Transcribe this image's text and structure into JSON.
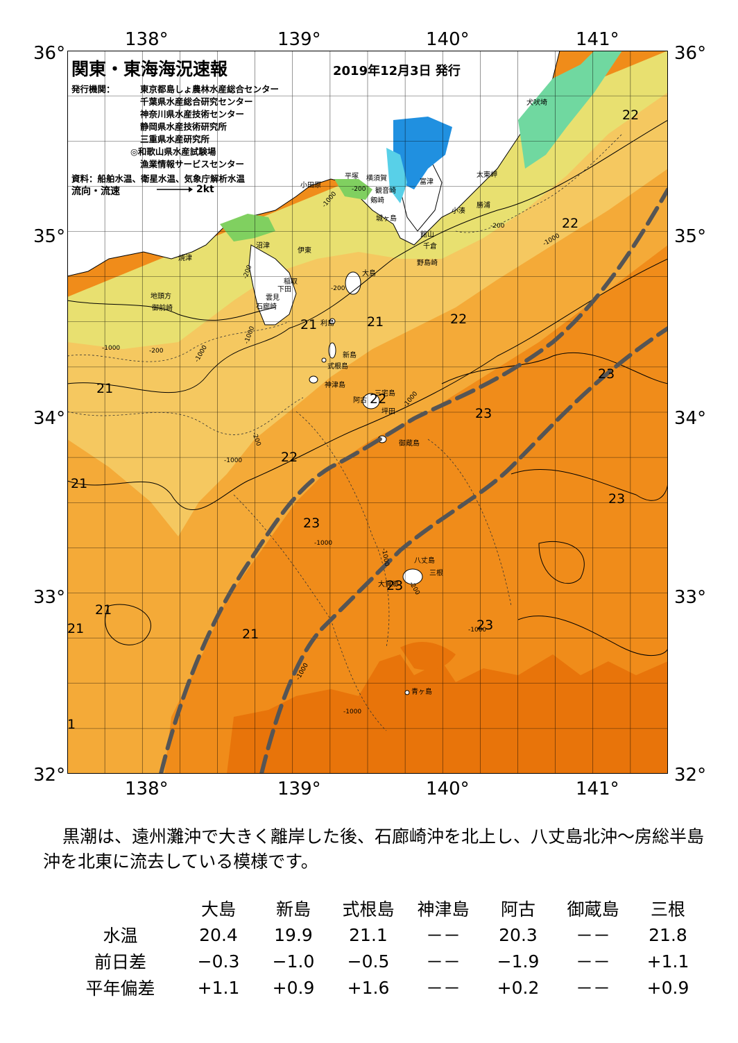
{
  "header": {
    "title": "関東・東海海況速報",
    "date": "2019年12月3日 発行"
  },
  "agencies": {
    "label": "発行機関：",
    "list": [
      "東京都島しょ農林水産総合センター",
      "千葉県水産総合研究センター",
      "神奈川県水産技術センター",
      "静岡県水産技術研究所",
      "三重県水産研究所",
      "◎和歌山県水産試験場",
      "漁業情報サービスセンター"
    ]
  },
  "source": "資料：船舶水温、衛星水温、気象庁解析水温",
  "legend": {
    "label": "流向・流速",
    "speed": "2kt"
  },
  "axes": {
    "lon_ticks": [
      "138°",
      "139°",
      "140°",
      "141°"
    ],
    "lat_ticks": [
      "36°",
      "35°",
      "34°",
      "33°",
      "32°"
    ]
  },
  "place_names": [
    "犬吠埼",
    "太東岬",
    "小湊",
    "勝浦",
    "館山",
    "千倉",
    "野島崎",
    "富津",
    "横須賀",
    "観音崎",
    "剱崎",
    "平塚",
    "小田原",
    "城ヶ島",
    "沼津",
    "伊東",
    "焼津",
    "稲取",
    "下田",
    "雲見",
    "石廊崎",
    "地頭方",
    "御前崎",
    "大島",
    "利島",
    "新島",
    "式根島",
    "神津島",
    "三宅島",
    "阿古",
    "坪田",
    "御蔵島",
    "八丈島",
    "三根",
    "大賀郷",
    "青ヶ島"
  ],
  "temp_labels": [
    "22",
    "22",
    "21",
    "21",
    "22",
    "21",
    "22",
    "23",
    "23",
    "21",
    "22",
    "21",
    "23",
    "23",
    "23",
    "21",
    "21",
    "23",
    "1"
  ],
  "depth_labels": [
    "-200",
    "-1000",
    "-1000",
    "-200",
    "-200",
    "-1000",
    "-200",
    "-1000",
    "-1000",
    "-200",
    "-1000",
    "-200",
    "-1000",
    "-1000",
    "-1000",
    "-200",
    "-1000",
    "-1000",
    "-1000"
  ],
  "colors": {
    "warm_deep": "#e8740a",
    "warm": "#f08c1a",
    "mid": "#f4aa38",
    "cool": "#f5c860",
    "cold": "#e8e070",
    "coast_green": "#80d060",
    "bay_blue": "#2090e0",
    "kuroshio_axis": "#555555"
  },
  "description": "黒潮は、遠州灘沖で大きく離岸した後、石廊崎沖を北上し、八丈島北沖～房総半島沖を北東に流去している模様です。",
  "table": {
    "columns": [
      "大島",
      "新島",
      "式根島",
      "神津島",
      "阿古",
      "御蔵島",
      "三根"
    ],
    "rows": [
      {
        "label": "水温",
        "values": [
          "20.4",
          "19.9",
          "21.1",
          "－－",
          "20.3",
          "－－",
          "21.8"
        ]
      },
      {
        "label": "前日差",
        "values": [
          "−0.3",
          "−1.0",
          "−0.5",
          "－－",
          "−1.9",
          "－－",
          "+1.1"
        ]
      },
      {
        "label": "平年偏差",
        "values": [
          "+1.1",
          "+0.9",
          "+1.6",
          "－－",
          "+0.2",
          "－－",
          "+0.9"
        ]
      }
    ]
  }
}
